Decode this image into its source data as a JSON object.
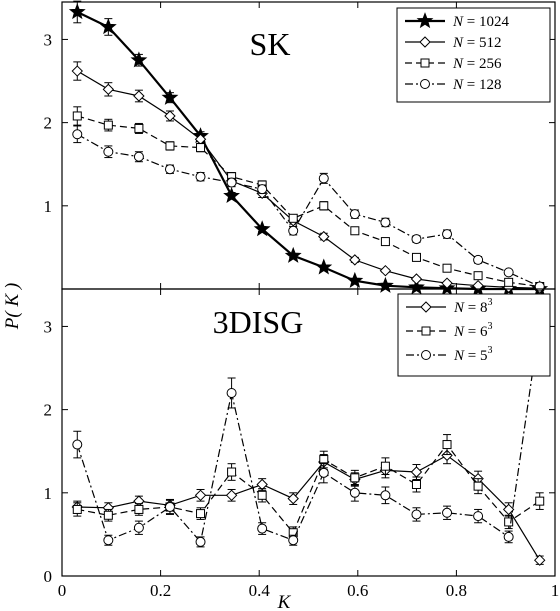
{
  "axis": {
    "xlabel": "K",
    "ylabel": "P( K )",
    "xlim": [
      0,
      1
    ],
    "xticks": [
      "0",
      "0.2",
      "0.4",
      "0.6",
      "0.8",
      "1"
    ]
  },
  "chart_data": [
    {
      "type": "line",
      "title": "SK",
      "ylim": [
        0,
        3.45
      ],
      "yticks": [
        "0",
        "1",
        "2",
        "3"
      ],
      "x": [
        0.031,
        0.094,
        0.156,
        0.219,
        0.281,
        0.344,
        0.406,
        0.469,
        0.531,
        0.594,
        0.656,
        0.719,
        0.781,
        0.844,
        0.906,
        0.969
      ],
      "legend_position": "top-right",
      "series": [
        {
          "name": "N = 1024",
          "legend": [
            "N",
            " = 1024"
          ],
          "marker": "star",
          "dash": "solid",
          "width": 2.2,
          "values": [
            3.33,
            3.15,
            2.75,
            2.3,
            1.84,
            1.12,
            0.72,
            0.4,
            0.26,
            0.1,
            0.04,
            0.02,
            0.01,
            0.0,
            0.0,
            0.0
          ],
          "errors": [
            0.13,
            0.1,
            0.07,
            0.06,
            0.05,
            0.04,
            0.03,
            0.02,
            0.02,
            0.01,
            0.01,
            0.01,
            0.01,
            0.0,
            0.0,
            0.0
          ]
        },
        {
          "name": "N = 512",
          "legend": [
            "N",
            " = 512"
          ],
          "marker": "diamond",
          "dash": "solid",
          "width": 1.2,
          "values": [
            2.62,
            2.4,
            2.32,
            2.08,
            1.8,
            1.3,
            1.15,
            0.82,
            0.63,
            0.35,
            0.22,
            0.12,
            0.07,
            0.04,
            0.02,
            0.01
          ],
          "errors": [
            0.11,
            0.08,
            0.07,
            0.06,
            0.05,
            0.05,
            0.05,
            0.04,
            0.04,
            0.03,
            0.02,
            0.02,
            0.01,
            0.01,
            0.01,
            0.0
          ]
        },
        {
          "name": "N = 256",
          "legend": [
            "N",
            " = 256"
          ],
          "marker": "square",
          "dash": "dashed",
          "width": 1.2,
          "values": [
            2.08,
            1.97,
            1.93,
            1.72,
            1.7,
            1.35,
            1.25,
            0.85,
            1.0,
            0.7,
            0.57,
            0.38,
            0.25,
            0.16,
            0.08,
            0.03
          ],
          "errors": [
            0.11,
            0.07,
            0.06,
            0.05,
            0.05,
            0.05,
            0.05,
            0.04,
            0.05,
            0.04,
            0.03,
            0.03,
            0.02,
            0.02,
            0.01,
            0.01
          ]
        },
        {
          "name": "N = 128",
          "legend": [
            "N",
            " = 128"
          ],
          "marker": "circle",
          "dash": "dashdot",
          "width": 1.2,
          "values": [
            1.86,
            1.65,
            1.59,
            1.44,
            1.35,
            1.28,
            1.2,
            0.7,
            1.33,
            0.9,
            0.8,
            0.6,
            0.66,
            0.35,
            0.2,
            0.03
          ],
          "errors": [
            0.1,
            0.07,
            0.06,
            0.05,
            0.05,
            0.05,
            0.05,
            0.05,
            0.06,
            0.05,
            0.05,
            0.04,
            0.05,
            0.04,
            0.03,
            0.01
          ]
        }
      ]
    },
    {
      "type": "line",
      "title": "3DISG",
      "ylim": [
        0,
        3.45
      ],
      "yticks": [
        "0",
        "1",
        "2",
        "3"
      ],
      "x": [
        0.031,
        0.094,
        0.156,
        0.219,
        0.281,
        0.344,
        0.406,
        0.469,
        0.531,
        0.594,
        0.656,
        0.719,
        0.781,
        0.844,
        0.906,
        0.969
      ],
      "legend_position": "top-right",
      "series": [
        {
          "name": "N = 8^3",
          "legend": [
            "N",
            " = 8",
            "3"
          ],
          "marker": "diamond",
          "dash": "solid",
          "width": 1.2,
          "values": [
            0.83,
            0.82,
            0.9,
            0.85,
            0.97,
            0.97,
            1.1,
            0.93,
            1.37,
            1.16,
            1.27,
            1.25,
            1.45,
            1.17,
            0.8,
            0.19
          ],
          "errors": [
            0.07,
            0.06,
            0.06,
            0.07,
            0.07,
            0.07,
            0.07,
            0.07,
            0.09,
            0.08,
            0.09,
            0.09,
            0.1,
            0.09,
            0.08,
            0.05
          ]
        },
        {
          "name": "N = 6^3",
          "legend": [
            "N",
            " = 6",
            "3"
          ],
          "marker": "square",
          "dash": "dashed",
          "width": 1.2,
          "values": [
            0.8,
            0.73,
            0.8,
            0.83,
            0.75,
            1.25,
            0.97,
            0.52,
            1.4,
            1.18,
            1.32,
            1.1,
            1.58,
            1.08,
            0.65,
            0.9
          ],
          "errors": [
            0.08,
            0.07,
            0.07,
            0.08,
            0.07,
            0.1,
            0.08,
            0.07,
            0.1,
            0.09,
            0.1,
            0.09,
            0.12,
            0.09,
            0.08,
            0.1
          ]
        },
        {
          "name": "N = 5^3",
          "legend": [
            "N",
            " = 5",
            "3"
          ],
          "marker": "circle",
          "dash": "dashdot",
          "width": 1.2,
          "values": [
            1.58,
            0.43,
            0.58,
            0.83,
            0.41,
            2.2,
            0.57,
            0.43,
            1.24,
            1.0,
            0.97,
            0.74,
            0.76,
            0.72,
            0.47,
            3.04
          ],
          "errors": [
            0.16,
            0.06,
            0.08,
            0.09,
            0.06,
            0.18,
            0.07,
            0.06,
            0.12,
            0.1,
            0.1,
            0.08,
            0.08,
            0.08,
            0.07,
            0.18
          ]
        }
      ]
    }
  ]
}
